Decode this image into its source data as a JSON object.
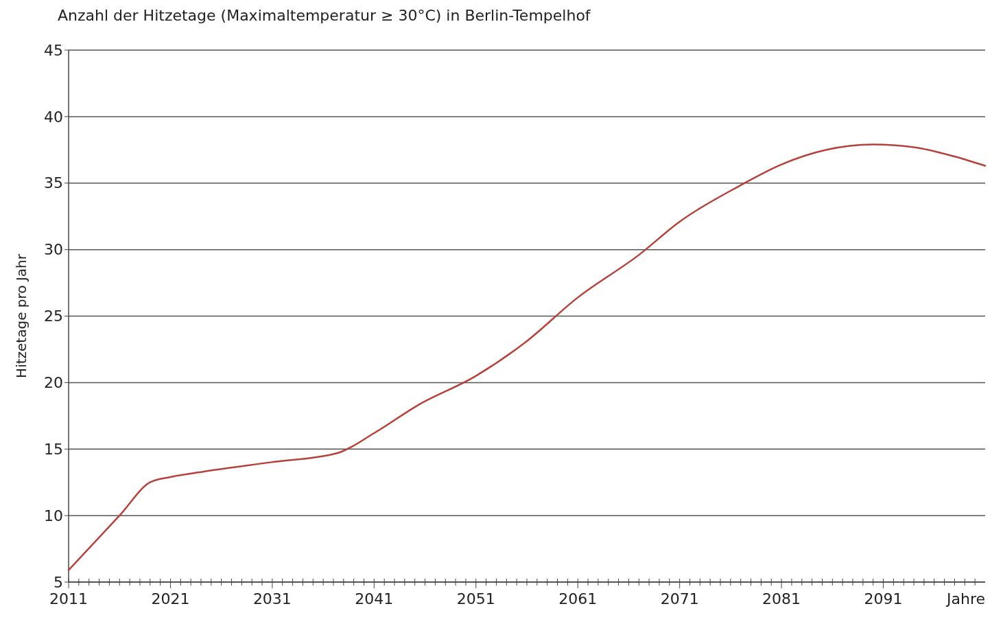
{
  "chart_data": {
    "type": "line",
    "title": "Anzahl der Hitzetage (Maximaltemperatur ≥ 30°C) in Berlin-Tempelhof",
    "ylabel": "Hitzetage pro Jahr",
    "xlabel": "Jahre",
    "x": [
      2011,
      2016,
      2019,
      2021,
      2024.2,
      2030.8,
      2037.4,
      2041,
      2045.3,
      2051,
      2055.8,
      2061,
      2067,
      2071,
      2076.9,
      2081,
      2085.4,
      2090,
      2094,
      2098,
      2101
    ],
    "series": [
      {
        "color": "#b5423a",
        "values": [
          5.9,
          10,
          12.5,
          12.9,
          13.3,
          14.0,
          14.7,
          16.2,
          18.3,
          20.5,
          23.0,
          26.4,
          29.6,
          32.1,
          34.8,
          36.4,
          37.5,
          37.9,
          37.7,
          37.0,
          36.3
        ]
      }
    ],
    "xlim": [
      2011,
      2101
    ],
    "xticks": [
      2011,
      {
        "value": 2012,
        "label": null
      },
      {
        "value": 2013,
        "label": null
      },
      {
        "value": 2014,
        "label": null
      },
      {
        "value": 2015,
        "label": null
      },
      {
        "value": 2016,
        "label": null
      },
      {
        "value": 2017,
        "label": null
      },
      {
        "value": 2018,
        "label": null
      },
      {
        "value": 2019,
        "label": null
      },
      {
        "value": 2020,
        "label": null
      },
      2021,
      {
        "value": 2022,
        "label": null
      },
      {
        "value": 2023,
        "label": null
      },
      {
        "value": 2024,
        "label": null
      },
      {
        "value": 2025,
        "label": null
      },
      {
        "value": 2026,
        "label": null
      },
      {
        "value": 2027,
        "label": null
      },
      {
        "value": 2028,
        "label": null
      },
      {
        "value": 2029,
        "label": null
      },
      {
        "value": 2030,
        "label": null
      },
      2031,
      {
        "value": 2032,
        "label": null
      },
      {
        "value": 2033,
        "label": null
      },
      {
        "value": 2034,
        "label": null
      },
      {
        "value": 2035,
        "label": null
      },
      {
        "value": 2036,
        "label": null
      },
      {
        "value": 2037,
        "label": null
      },
      {
        "value": 2038,
        "label": null
      },
      {
        "value": 2039,
        "label": null
      },
      {
        "value": 2040,
        "label": null
      },
      2041,
      {
        "value": 2042,
        "label": null
      },
      {
        "value": 2043,
        "label": null
      },
      {
        "value": 2044,
        "label": null
      },
      {
        "value": 2045,
        "label": null
      },
      {
        "value": 2046,
        "label": null
      },
      {
        "value": 2047,
        "label": null
      },
      {
        "value": 2048,
        "label": null
      },
      {
        "value": 2049,
        "label": null
      },
      {
        "value": 2050,
        "label": null
      },
      2051,
      {
        "value": 2052,
        "label": null
      },
      {
        "value": 2053,
        "label": null
      },
      {
        "value": 2054,
        "label": null
      },
      {
        "value": 2055,
        "label": null
      },
      {
        "value": 2056,
        "label": null
      },
      {
        "value": 2057,
        "label": null
      },
      {
        "value": 2058,
        "label": null
      },
      {
        "value": 2059,
        "label": null
      },
      {
        "value": 2060,
        "label": null
      },
      2061,
      {
        "value": 2062,
        "label": null
      },
      {
        "value": 2063,
        "label": null
      },
      {
        "value": 2064,
        "label": null
      },
      {
        "value": 2065,
        "label": null
      },
      {
        "value": 2066,
        "label": null
      },
      {
        "value": 2067,
        "label": null
      },
      {
        "value": 2068,
        "label": null
      },
      {
        "value": 2069,
        "label": null
      },
      {
        "value": 2070,
        "label": null
      },
      2071,
      {
        "value": 2072,
        "label": null
      },
      {
        "value": 2073,
        "label": null
      },
      {
        "value": 2074,
        "label": null
      },
      {
        "value": 2075,
        "label": null
      },
      {
        "value": 2076,
        "label": null
      },
      {
        "value": 2077,
        "label": null
      },
      {
        "value": 2078,
        "label": null
      },
      {
        "value": 2079,
        "label": null
      },
      {
        "value": 2080,
        "label": null
      },
      2081,
      {
        "value": 2082,
        "label": null
      },
      {
        "value": 2083,
        "label": null
      },
      {
        "value": 2084,
        "label": null
      },
      {
        "value": 2085,
        "label": null
      },
      {
        "value": 2086,
        "label": null
      },
      {
        "value": 2087,
        "label": null
      },
      {
        "value": 2088,
        "label": null
      },
      {
        "value": 2089,
        "label": null
      },
      {
        "value": 2090,
        "label": null
      },
      2091,
      {
        "value": 2092,
        "label": null
      },
      {
        "value": 2093,
        "label": null
      },
      {
        "value": 2094,
        "label": null
      },
      {
        "value": 2095,
        "label": null
      },
      {
        "value": 2096,
        "label": null
      },
      {
        "value": 2097,
        "label": null
      },
      {
        "value": 2098,
        "label": null
      },
      {
        "value": 2099,
        "label": null
      },
      {
        "value": 2100,
        "label": null
      }
    ],
    "ylim": [
      5,
      45
    ],
    "yticks": [
      5,
      10,
      15,
      20,
      25,
      30,
      35,
      40,
      45
    ],
    "grid": "y",
    "line_style": "solid"
  }
}
